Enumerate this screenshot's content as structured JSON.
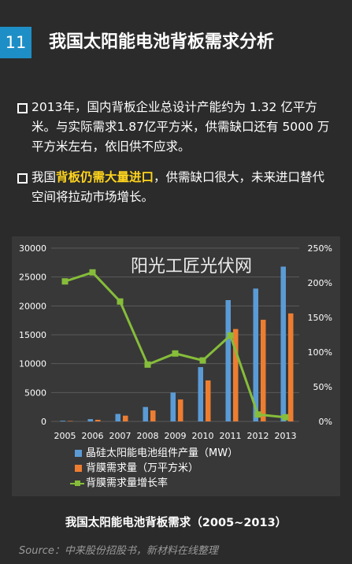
{
  "page": {
    "number": "11",
    "title": "我国太阳能电池背板需求分析"
  },
  "bullets": [
    {
      "text": "2013年，国内背板企业总设计产能约为 1.32 亿平方米。与实际需求1.87亿平方米，供需缺口还有 5000 万平方米左右，依旧供不应求。"
    },
    {
      "pre": "我国",
      "highlight": "背板仍需大量进口",
      "post": "，供需缺口很大，未来进口替代空间将拉动市场增长。"
    }
  ],
  "watermark": "阳光工匠光伏网",
  "caption": "我国太阳能电池背板需求（2005~2013）",
  "source": "Source：中来股份招股书，新材料在线整理",
  "colors": {
    "bar_series_1": "#5b9bd5",
    "bar_series_2": "#ed7d31",
    "line_series": "#86bd3a",
    "accent": "#1e8fc6",
    "highlight": "#ffd41d"
  },
  "chart_data": {
    "type": "bar",
    "categories": [
      "2005",
      "2006",
      "2007",
      "2008",
      "2009",
      "2010",
      "2011",
      "2012",
      "2013"
    ],
    "series": [
      {
        "name": "晶硅太阳能电池组件产量（MW）",
        "type": "bar",
        "axis": "left",
        "values": [
          120,
          400,
          1300,
          2500,
          5000,
          9400,
          21000,
          23000,
          26800
        ]
      },
      {
        "name": "背膜需求量（万平方米）",
        "type": "bar",
        "axis": "left",
        "values": [
          80,
          280,
          1000,
          1900,
          3800,
          7100,
          16000,
          17600,
          18700
        ]
      },
      {
        "name": "背膜需求量增长率",
        "type": "line",
        "axis": "right",
        "values": [
          2.02,
          2.15,
          1.73,
          0.82,
          0.98,
          0.88,
          1.24,
          0.1,
          0.06
        ]
      }
    ],
    "yleft_ticks": [
      "0",
      "5000",
      "10000",
      "15000",
      "20000",
      "25000",
      "30000"
    ],
    "yright_ticks": [
      "0%",
      "50%",
      "100%",
      "150%",
      "200%",
      "250%"
    ],
    "yleft_lim": [
      0,
      30000
    ],
    "yright_lim": [
      0,
      2.5
    ],
    "grid": true,
    "legend_position": "bottom"
  }
}
